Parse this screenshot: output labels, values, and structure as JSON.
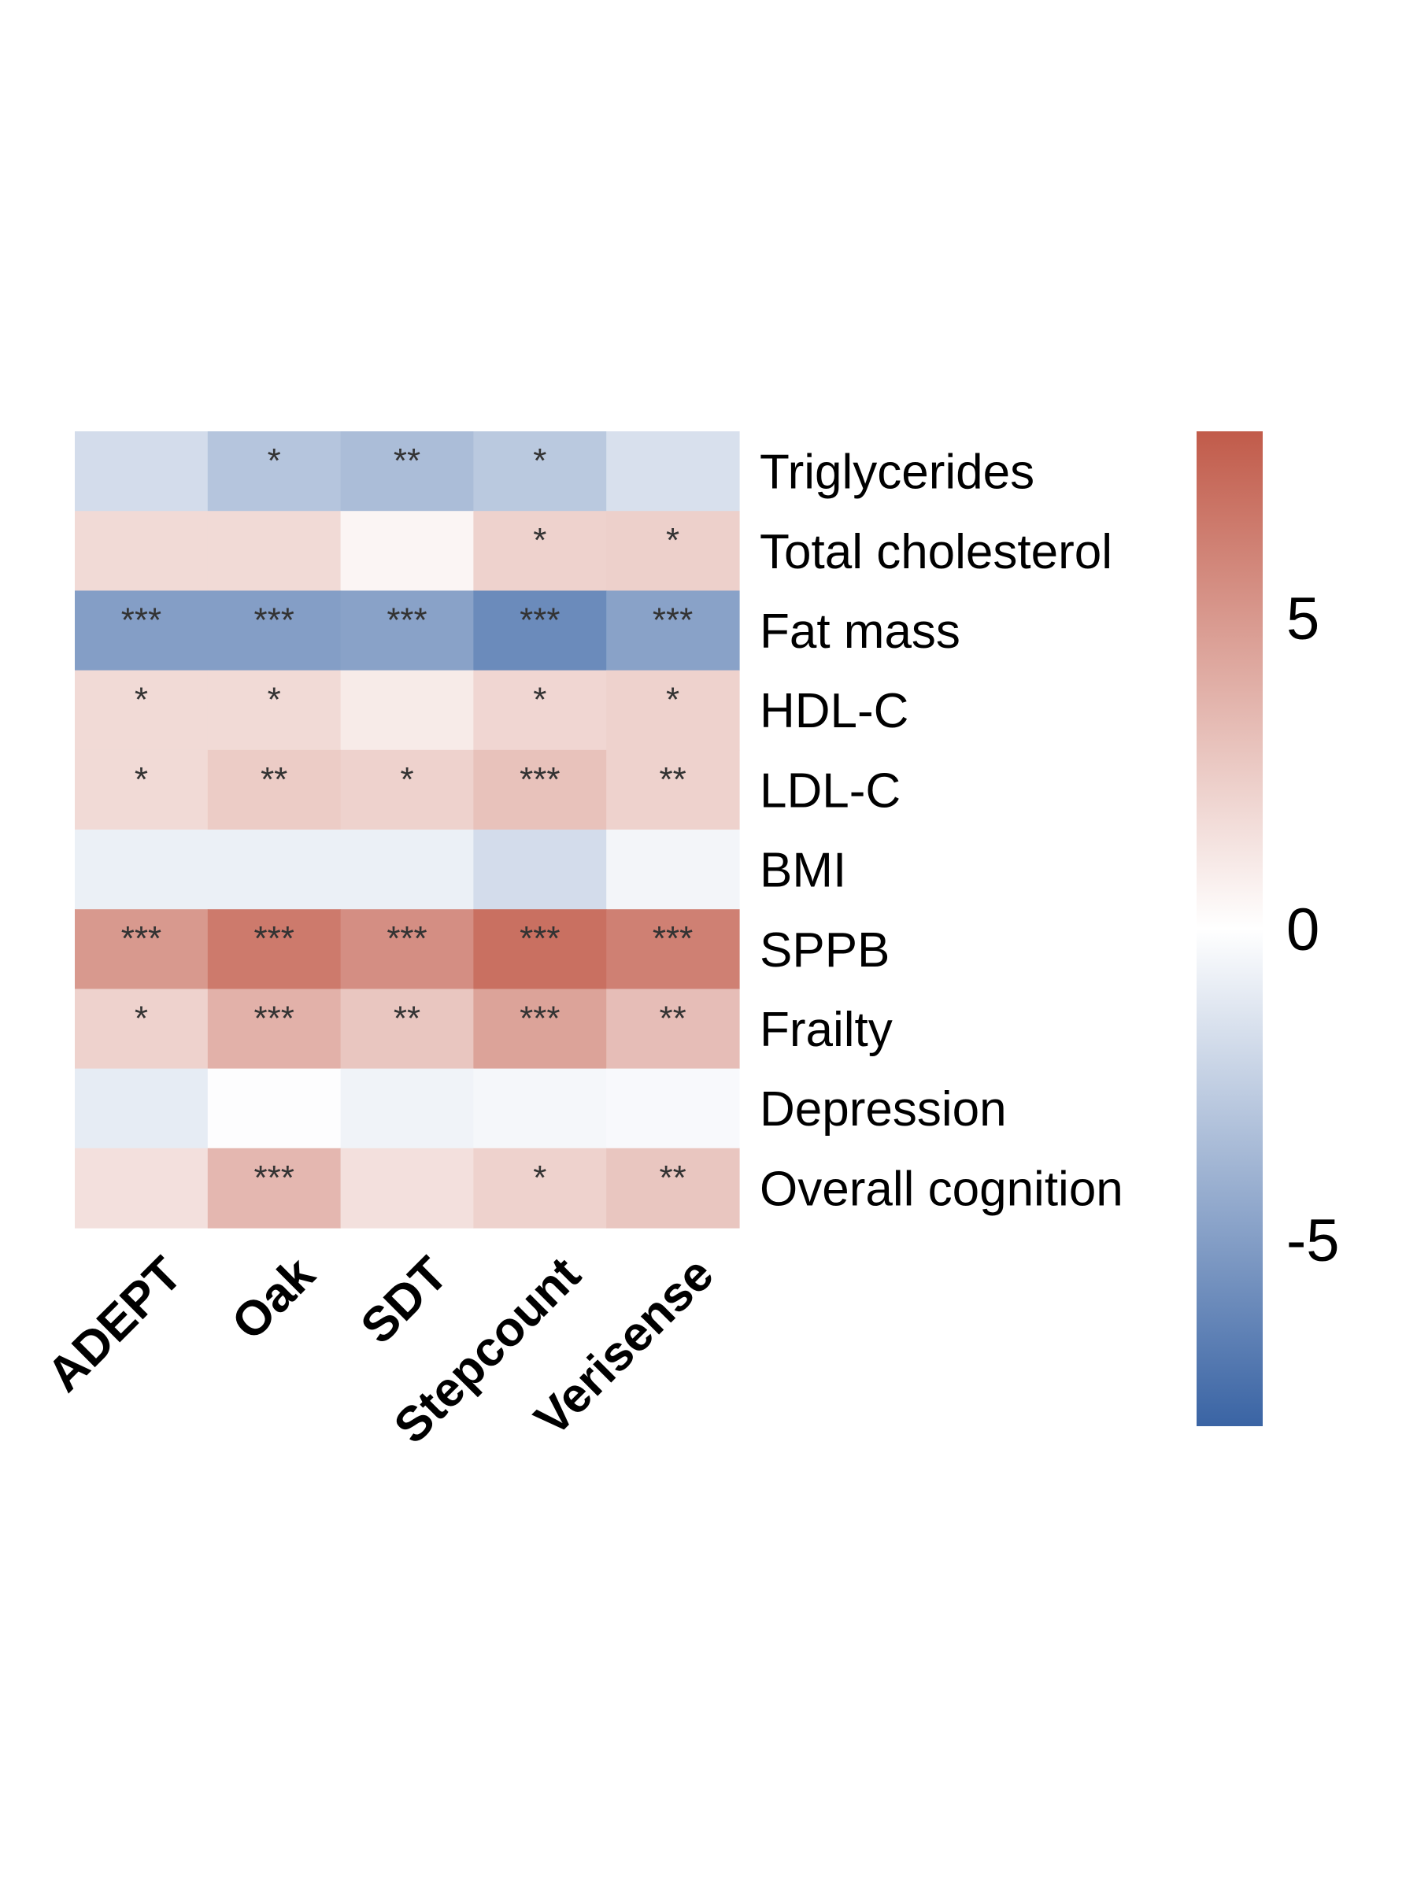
{
  "chart_data": {
    "type": "heatmap",
    "columns": [
      "ADEPT",
      "Oak",
      "SDT",
      "Stepcount",
      "Verisense"
    ],
    "rows": [
      "Triglycerides",
      "Total cholesterol",
      "Fat mass",
      "HDL-C",
      "LDL-C",
      "BMI",
      "SPPB",
      "Frailty",
      "Depression",
      "Overall cognition"
    ],
    "values": [
      [
        -1.8,
        -3.0,
        -3.4,
        -2.8,
        -1.6
      ],
      [
        1.8,
        1.8,
        0.5,
        2.2,
        2.3
      ],
      [
        -5.0,
        -5.0,
        -4.8,
        -6.0,
        -4.8
      ],
      [
        1.8,
        1.8,
        1.0,
        2.0,
        2.2
      ],
      [
        1.8,
        2.5,
        2.2,
        3.0,
        2.2
      ],
      [
        -0.8,
        -0.8,
        -0.8,
        -1.8,
        -0.5
      ],
      [
        5.0,
        6.5,
        5.5,
        7.0,
        6.2
      ],
      [
        2.2,
        3.8,
        2.8,
        4.5,
        3.2
      ],
      [
        -1.0,
        -0.1,
        -0.6,
        -0.4,
        -0.3
      ],
      [
        1.5,
        3.5,
        1.5,
        2.2,
        2.8
      ]
    ],
    "significance": [
      [
        "",
        "*",
        "**",
        "*",
        ""
      ],
      [
        "",
        "",
        "",
        "*",
        "*"
      ],
      [
        "***",
        "***",
        "***",
        "***",
        "***"
      ],
      [
        "*",
        "*",
        "",
        "*",
        "*"
      ],
      [
        "*",
        "**",
        "*",
        "***",
        "**"
      ],
      [
        "",
        "",
        "",
        "",
        ""
      ],
      [
        "***",
        "***",
        "***",
        "***",
        "***"
      ],
      [
        "*",
        "***",
        "**",
        "***",
        "**"
      ],
      [
        "",
        "",
        "",
        "",
        ""
      ],
      [
        "",
        "***",
        "",
        "*",
        "**"
      ]
    ],
    "colorbar": {
      "range": [
        -8,
        8
      ],
      "ticks": [
        5,
        0,
        -5
      ],
      "tick_labels": [
        "5",
        "0",
        "-5"
      ]
    },
    "colors": {
      "low": "#3a64a4",
      "mid": "#ffffff",
      "high": "#c15b4a"
    }
  }
}
